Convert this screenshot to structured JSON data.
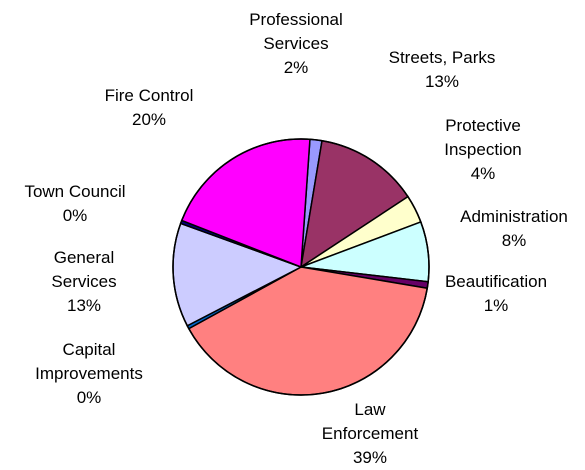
{
  "chart_data": {
    "type": "pie",
    "title": "",
    "slices": [
      {
        "name": "Professional Services",
        "label_lines": [
          "Professional",
          "Services"
        ],
        "percent_label": "2%",
        "value": 1.5,
        "color": "#9999ff"
      },
      {
        "name": "Streets, Parks",
        "label_lines": [
          "Streets, Parks"
        ],
        "percent_label": "13%",
        "value": 13,
        "color": "#993366"
      },
      {
        "name": "Protective Inspection",
        "label_lines": [
          "Protective",
          "Inspection"
        ],
        "percent_label": "4%",
        "value": 3.5,
        "color": "#ffffcc"
      },
      {
        "name": "Administration",
        "label_lines": [
          "Administration"
        ],
        "percent_label": "8%",
        "value": 7.5,
        "color": "#ccffff"
      },
      {
        "name": "Beautification",
        "label_lines": [
          "Beautification"
        ],
        "percent_label": "1%",
        "value": 0.8,
        "color": "#660066"
      },
      {
        "name": "Law Enforcement",
        "label_lines": [
          "Law",
          "Enforcement"
        ],
        "percent_label": "39%",
        "value": 39,
        "color": "#ff8080"
      },
      {
        "name": "Capital Improvements",
        "label_lines": [
          "Capital",
          "Improvements"
        ],
        "percent_label": "0%",
        "value": 0.4,
        "color": "#0066cc"
      },
      {
        "name": "General Services",
        "label_lines": [
          "General",
          "Services"
        ],
        "percent_label": "13%",
        "value": 13,
        "color": "#ccccff"
      },
      {
        "name": "Town Council",
        "label_lines": [
          "Town Council"
        ],
        "percent_label": "0%",
        "value": 0.4,
        "color": "#000080"
      },
      {
        "name": "Fire Control",
        "label_lines": [
          "Fire Control"
        ],
        "percent_label": "20%",
        "value": 20,
        "color": "#ff00ff"
      }
    ],
    "legend": "none"
  }
}
